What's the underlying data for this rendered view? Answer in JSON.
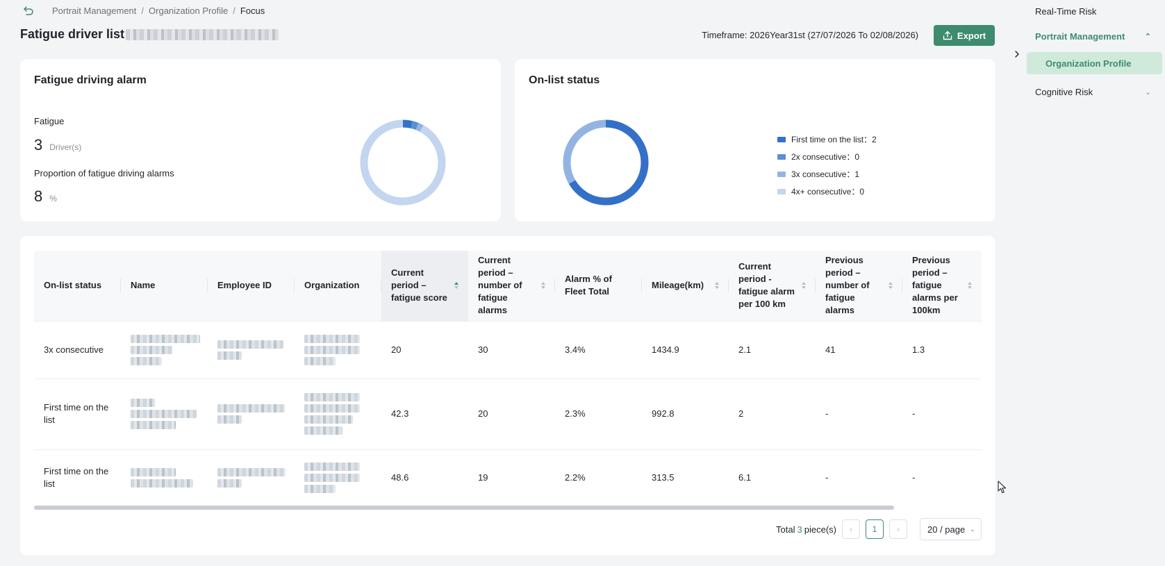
{
  "breadcrumb": {
    "items": [
      "Portrait Management",
      "Organization Profile"
    ],
    "current": "Focus",
    "separator": "/"
  },
  "header": {
    "title": "Fatigue driver list",
    "timeframe": "Timeframe: 2026Year31st (27/07/2026 To 02/08/2026)",
    "export_label": "Export"
  },
  "fatigue_card": {
    "title": "Fatigue driving alarm",
    "fatigue_label": "Fatigue",
    "fatigue_value": "3",
    "fatigue_unit": "Driver(s)",
    "proportion_label": "Proportion of fatigue driving alarms",
    "proportion_value": "8",
    "proportion_unit": "%",
    "donut_fraction": 0.08
  },
  "onlist_card": {
    "title": "On-list status",
    "legend": [
      {
        "label": "First time on the list",
        "value": "2",
        "color": "#3470c8"
      },
      {
        "label": "2x consecutive",
        "value": "0",
        "color": "#5b8fd4"
      },
      {
        "label": "3x consecutive",
        "value": "1",
        "color": "#93b4e3"
      },
      {
        "label": "4x+ consecutive",
        "value": "0",
        "color": "#c3d5ef"
      }
    ]
  },
  "table": {
    "columns": [
      "On-list status",
      "Name",
      "Employee ID",
      "Organization",
      "Current period – fatigue score",
      "Current period – number of fatigue alarms",
      "Alarm % of Fleet Total",
      "Mileage(km)",
      "Current period - fatigue alarm per 100 km",
      "Previous period – number of fatigue alarms",
      "Previous period – fatigue alarms per 100km"
    ],
    "rows": [
      {
        "status": "3x consecutive",
        "score": "20",
        "alarms": "30",
        "pct": "3.4%",
        "mileage": "1434.9",
        "per100": "2.1",
        "prev_alarms": "41",
        "prev_per100": "1.3"
      },
      {
        "status": "First time on the list",
        "score": "42.3",
        "alarms": "20",
        "pct": "2.3%",
        "mileage": "992.8",
        "per100": "2",
        "prev_alarms": "-",
        "prev_per100": "-"
      },
      {
        "status": "First time on the list",
        "score": "48.6",
        "alarms": "19",
        "pct": "2.2%",
        "mileage": "313.5",
        "per100": "6.1",
        "prev_alarms": "-",
        "prev_per100": "-"
      }
    ]
  },
  "pagination": {
    "total_prefix": "Total",
    "total": "3",
    "total_suffix": "piece(s)",
    "current_page": "1",
    "page_size": "20 / page"
  },
  "sidebar": {
    "items": [
      {
        "label": "Real-Time Risk"
      },
      {
        "label": "Portrait Management"
      },
      {
        "label": "Organization Profile"
      },
      {
        "label": "Cognitive Risk"
      }
    ]
  },
  "colors": {
    "accent": "#3e8b6e",
    "accent_light": "#cfeadb",
    "donut_light": "#c3d5ef",
    "donut_dark": "#3470c8"
  }
}
